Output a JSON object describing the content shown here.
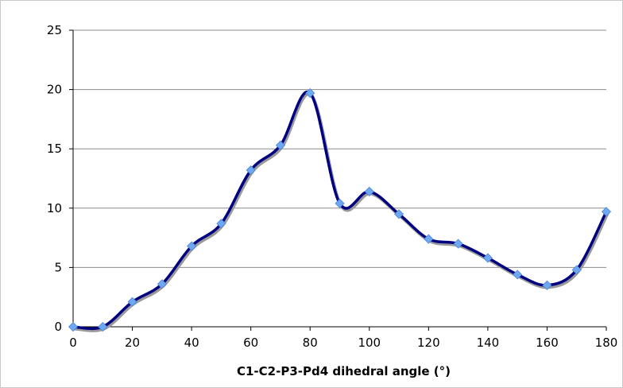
{
  "chart_data": {
    "type": "line",
    "title": "",
    "xlabel": "C1-C2-P3-Pd4 dihedral angle (°)",
    "ylabel": "",
    "xlim": [
      0,
      180
    ],
    "ylim": [
      0,
      25
    ],
    "x_ticks": [
      "0",
      "20",
      "40",
      "60",
      "80",
      "100",
      "120",
      "140",
      "160",
      "180"
    ],
    "y_ticks": [
      "0",
      "5",
      "10",
      "15",
      "20",
      "25"
    ],
    "grid": "horizontal",
    "legend": "none",
    "smooth": true,
    "series": [
      {
        "color": "#000080",
        "marker_color": "#6fa8f0",
        "marker": "diamond",
        "x": [
          0,
          10,
          20,
          30,
          40,
          50,
          60,
          70,
          80,
          90,
          100,
          110,
          120,
          130,
          140,
          150,
          160,
          170,
          180
        ],
        "y": [
          0.0,
          0.0,
          2.1,
          3.6,
          6.8,
          8.7,
          13.2,
          15.3,
          19.7,
          10.4,
          11.4,
          9.5,
          7.4,
          7.0,
          5.8,
          4.4,
          3.5,
          4.8,
          9.7
        ]
      }
    ]
  }
}
